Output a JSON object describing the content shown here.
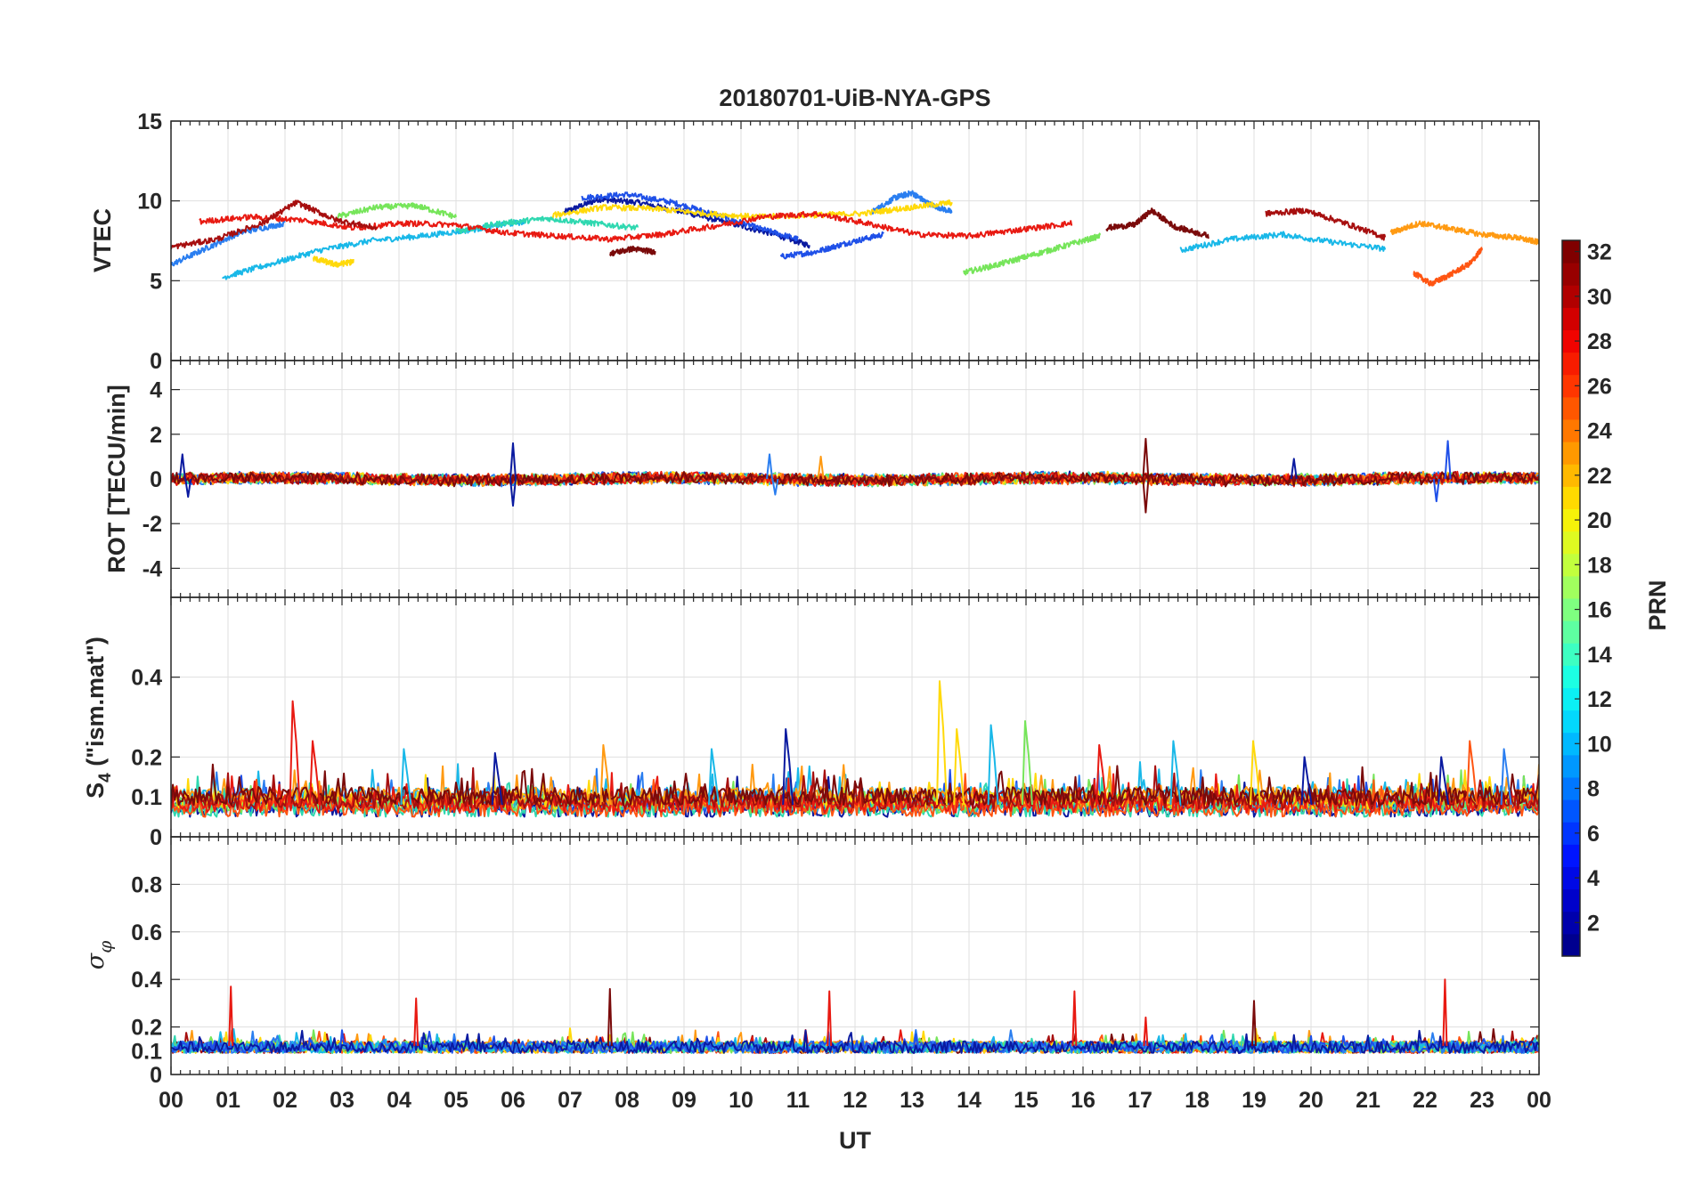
{
  "chart_data": {
    "type": "line",
    "title": "20180701-UiB-NYA-GPS",
    "xlabel": "UT",
    "x_tick_labels": [
      "00",
      "01",
      "02",
      "03",
      "04",
      "05",
      "06",
      "07",
      "08",
      "09",
      "10",
      "11",
      "12",
      "13",
      "14",
      "15",
      "16",
      "17",
      "18",
      "19",
      "20",
      "21",
      "22",
      "23",
      "00"
    ],
    "xlim_hours": [
      0,
      24
    ],
    "grid": true,
    "panels": [
      {
        "id": "vtec",
        "ylabel": "VTEC",
        "ylim": [
          0,
          15
        ],
        "yticks": [
          0,
          5,
          10,
          15
        ],
        "ytick_labels": [
          "0",
          "5",
          "10",
          "15"
        ],
        "series": [
          {
            "prn": 2,
            "color": "#0a1aa0",
            "x": [
              6.9,
              7.5,
              8.2,
              9.0,
              9.8,
              10.6,
              11.2
            ],
            "y": [
              9.3,
              10.1,
              9.9,
              9.3,
              8.6,
              7.9,
              7.2
            ]
          },
          {
            "prn": 5,
            "color": "#1f50e8",
            "x": [
              7.2,
              8.0,
              8.8,
              9.6,
              10.3,
              11.0
            ],
            "y": [
              10.2,
              10.4,
              9.9,
              9.1,
              8.3,
              7.6
            ]
          },
          {
            "prn": 5,
            "color": "#1f50e8",
            "x": [
              10.7,
              11.3,
              11.9,
              12.5
            ],
            "y": [
              6.5,
              6.8,
              7.4,
              7.9
            ]
          },
          {
            "prn": 8,
            "color": "#2a7ef0",
            "x": [
              12.3,
              12.7,
              13.0,
              13.3,
              13.7
            ],
            "y": [
              9.3,
              10.2,
              10.5,
              9.8,
              9.3
            ]
          },
          {
            "prn": 8,
            "color": "#2a7ef0",
            "x": [
              0.0,
              0.6,
              1.2,
              2.0
            ],
            "y": [
              6.0,
              7.0,
              8.0,
              8.6
            ]
          },
          {
            "prn": 11,
            "color": "#19b8e8",
            "x": [
              0.9,
              1.7,
              2.6,
              3.5,
              4.4,
              5.3,
              6.2
            ],
            "y": [
              5.2,
              6.0,
              6.9,
              7.5,
              7.8,
              8.2,
              8.7
            ]
          },
          {
            "prn": 11,
            "color": "#19b8e8",
            "x": [
              17.7,
              18.6,
              19.5,
              20.4,
              21.3
            ],
            "y": [
              6.9,
              7.6,
              7.9,
              7.4,
              7.0
            ]
          },
          {
            "prn": 14,
            "color": "#2fd8b0",
            "x": [
              5.0,
              5.8,
              6.6,
              7.4,
              8.2
            ],
            "y": [
              8.1,
              8.6,
              8.9,
              8.6,
              8.3
            ]
          },
          {
            "prn": 17,
            "color": "#76e55a",
            "x": [
              13.9,
              14.5,
              15.1,
              15.7,
              16.3
            ],
            "y": [
              5.5,
              6.0,
              6.6,
              7.2,
              7.8
            ]
          },
          {
            "prn": 17,
            "color": "#76e55a",
            "x": [
              2.9,
              3.6,
              4.3,
              5.0
            ],
            "y": [
              9.0,
              9.6,
              9.7,
              9.0
            ]
          },
          {
            "prn": 20,
            "color": "#ffd90a",
            "x": [
              2.5,
              2.9,
              3.2
            ],
            "y": [
              6.4,
              6.0,
              6.2
            ]
          },
          {
            "prn": 20,
            "color": "#ffd90a",
            "x": [
              6.7,
              7.6,
              8.5,
              9.4,
              10.3,
              11.2,
              12.1,
              13.0,
              13.7
            ],
            "y": [
              9.1,
              9.6,
              9.5,
              9.2,
              9.0,
              9.1,
              9.2,
              9.6,
              9.9
            ]
          },
          {
            "prn": 23,
            "color": "#ff9a12",
            "x": [
              21.4,
              21.9,
              22.4,
              23.0,
              23.6,
              24.0
            ],
            "y": [
              8.0,
              8.6,
              8.3,
              7.9,
              7.7,
              7.4
            ]
          },
          {
            "prn": 25,
            "color": "#ff5512",
            "x": [
              21.8,
              22.1,
              22.4,
              22.8,
              23.0
            ],
            "y": [
              5.5,
              4.8,
              5.3,
              6.1,
              7.0
            ]
          },
          {
            "prn": 27,
            "color": "#e81a12",
            "x": [
              0.5,
              1.4,
              2.3,
              3.2,
              4.1,
              5.0,
              5.9,
              6.8,
              7.7,
              8.6,
              9.5,
              10.4,
              11.3,
              12.2,
              13.1,
              14.0,
              14.9,
              15.8
            ],
            "y": [
              8.7,
              9.0,
              8.8,
              8.3,
              8.6,
              8.5,
              8.0,
              7.8,
              7.6,
              7.9,
              8.4,
              9.0,
              9.2,
              8.6,
              7.9,
              7.8,
              8.2,
              8.6
            ]
          },
          {
            "prn": 30,
            "color": "#a70f0f",
            "x": [
              0.0,
              0.8,
              1.6,
              2.2,
              2.9,
              3.6
            ],
            "y": [
              7.1,
              7.6,
              8.6,
              9.9,
              8.8,
              8.3
            ]
          },
          {
            "prn": 30,
            "color": "#a70f0f",
            "x": [
              19.2,
              19.9,
              20.6,
              21.3
            ],
            "y": [
              9.2,
              9.4,
              8.6,
              7.7
            ]
          },
          {
            "prn": 32,
            "color": "#7a0a0a",
            "x": [
              7.7,
              8.1,
              8.5
            ],
            "y": [
              6.7,
              7.0,
              6.8
            ]
          },
          {
            "prn": 32,
            "color": "#7a0a0a",
            "x": [
              16.4,
              16.9,
              17.2,
              17.6,
              18.2
            ],
            "y": [
              8.3,
              8.5,
              9.4,
              8.4,
              7.8
            ]
          }
        ]
      },
      {
        "id": "rot",
        "ylabel": "ROT [TECU/min]",
        "ylim": [
          -5.3,
          5.3
        ],
        "yticks": [
          -4,
          -2,
          0,
          2,
          4
        ],
        "ytick_labels": [
          "-4",
          "-2",
          "0",
          "2",
          "4"
        ],
        "spikes": [
          {
            "x": 0.2,
            "y": 1.1,
            "color": "#0a1aa0"
          },
          {
            "x": 0.3,
            "y": -0.8,
            "color": "#0a1aa0"
          },
          {
            "x": 6.0,
            "y": 1.6,
            "color": "#0a1aa0"
          },
          {
            "x": 6.0,
            "y": -1.2,
            "color": "#0a1aa0"
          },
          {
            "x": 10.5,
            "y": 1.1,
            "color": "#2a7ef0"
          },
          {
            "x": 10.6,
            "y": -0.7,
            "color": "#2a7ef0"
          },
          {
            "x": 11.4,
            "y": 1.0,
            "color": "#ff9a12"
          },
          {
            "x": 17.1,
            "y": 1.8,
            "color": "#7a0a0a"
          },
          {
            "x": 17.1,
            "y": -1.5,
            "color": "#7a0a0a"
          },
          {
            "x": 19.7,
            "y": 0.9,
            "color": "#0a1aa0"
          },
          {
            "x": 22.4,
            "y": 1.7,
            "color": "#1f50e8"
          },
          {
            "x": 22.2,
            "y": -1.0,
            "color": "#1f50e8"
          }
        ]
      },
      {
        "id": "s4",
        "ylabel": "S4 (\"ism.mat\")",
        "ylim": [
          0,
          0.6
        ],
        "yticks": [
          0,
          0.1,
          0.2,
          0.4
        ],
        "ytick_labels": [
          "0",
          "0.1",
          "0.2",
          "0.4"
        ],
        "peaks": [
          {
            "x": 2.15,
            "y": 0.34,
            "color": "#e81a12"
          },
          {
            "x": 2.5,
            "y": 0.24,
            "color": "#e81a12"
          },
          {
            "x": 4.1,
            "y": 0.22,
            "color": "#19b8e8"
          },
          {
            "x": 5.7,
            "y": 0.21,
            "color": "#0a1aa0"
          },
          {
            "x": 7.6,
            "y": 0.23,
            "color": "#ff9a12"
          },
          {
            "x": 9.5,
            "y": 0.22,
            "color": "#19b8e8"
          },
          {
            "x": 10.8,
            "y": 0.27,
            "color": "#0a1aa0"
          },
          {
            "x": 13.5,
            "y": 0.39,
            "color": "#ffd90a"
          },
          {
            "x": 13.8,
            "y": 0.27,
            "color": "#ffd90a"
          },
          {
            "x": 14.4,
            "y": 0.28,
            "color": "#19b8e8"
          },
          {
            "x": 15.0,
            "y": 0.29,
            "color": "#76e55a"
          },
          {
            "x": 16.3,
            "y": 0.23,
            "color": "#e81a12"
          },
          {
            "x": 17.6,
            "y": 0.24,
            "color": "#19b8e8"
          },
          {
            "x": 19.0,
            "y": 0.24,
            "color": "#ffd90a"
          },
          {
            "x": 19.9,
            "y": 0.2,
            "color": "#0a1aa0"
          },
          {
            "x": 22.3,
            "y": 0.2,
            "color": "#0a1aa0"
          },
          {
            "x": 22.8,
            "y": 0.24,
            "color": "#ff5512"
          },
          {
            "x": 23.4,
            "y": 0.22,
            "color": "#2a7ef0"
          }
        ]
      },
      {
        "id": "sigma_phi",
        "ylabel": "σφ",
        "ylim": [
          0,
          1
        ],
        "yticks": [
          0,
          0.1,
          0.2,
          0.4,
          0.6,
          0.8
        ],
        "ytick_labels": [
          "0",
          "0.1",
          "0.2",
          "0.4",
          "0.6",
          "0.8"
        ],
        "spikes": [
          {
            "x": 1.05,
            "y": 0.37,
            "color": "#e81a12"
          },
          {
            "x": 4.3,
            "y": 0.32,
            "color": "#e81a12"
          },
          {
            "x": 7.7,
            "y": 0.36,
            "color": "#7a0a0a"
          },
          {
            "x": 11.55,
            "y": 0.35,
            "color": "#e81a12"
          },
          {
            "x": 15.85,
            "y": 0.35,
            "color": "#e81a12"
          },
          {
            "x": 17.1,
            "y": 0.24,
            "color": "#e81a12"
          },
          {
            "x": 19.0,
            "y": 0.31,
            "color": "#7a0a0a"
          },
          {
            "x": 22.35,
            "y": 0.4,
            "color": "#e81a12"
          }
        ]
      }
    ],
    "colorbar": {
      "label": "PRN",
      "range": [
        1,
        32
      ],
      "tick_labels": [
        "2",
        "4",
        "6",
        "8",
        "10",
        "12",
        "14",
        "16",
        "18",
        "20",
        "22",
        "24",
        "26",
        "28",
        "30",
        "32"
      ],
      "colormap": "jet",
      "colors": [
        "#00008f",
        "#0000c8",
        "#0010ff",
        "#0050ff",
        "#0090ff",
        "#00d0ff",
        "#10ffef",
        "#50ffaf",
        "#90ff6f",
        "#d0ff2f",
        "#ffef00",
        "#ffaf00",
        "#ff7000",
        "#ff3000",
        "#ef0000",
        "#af0000",
        "#800000"
      ]
    }
  }
}
